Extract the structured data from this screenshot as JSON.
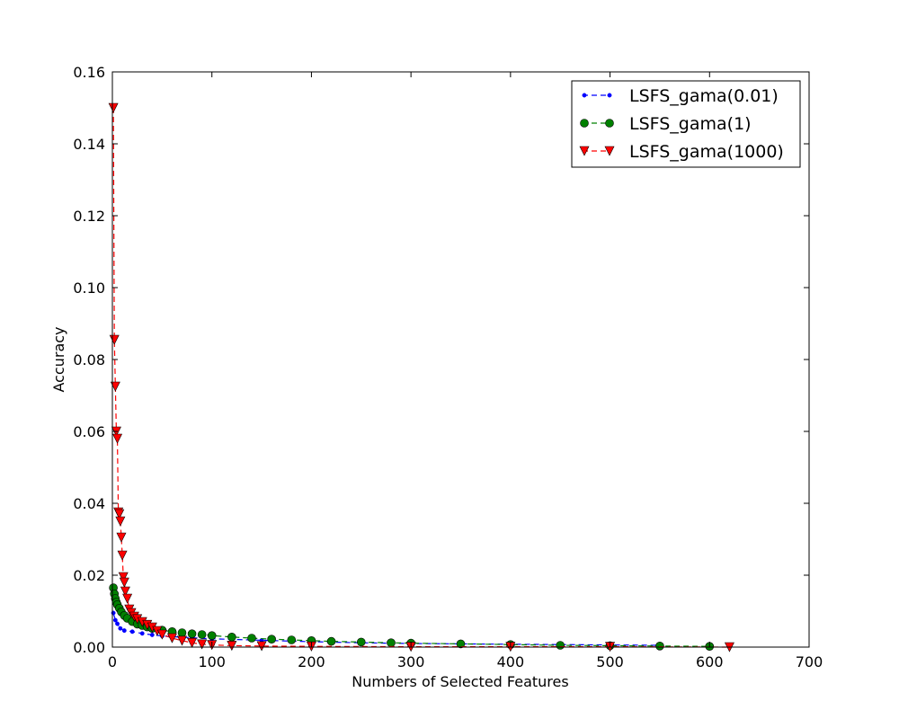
{
  "chart_data": {
    "type": "line",
    "title": "",
    "xlabel": "Numbers of Selected Features",
    "ylabel": "Accuracy",
    "xlim": [
      0,
      700
    ],
    "ylim": [
      0,
      0.16
    ],
    "x_ticks": [
      0,
      100,
      200,
      300,
      400,
      500,
      600,
      700
    ],
    "y_ticks": [
      0.0,
      0.02,
      0.04,
      0.06,
      0.08,
      0.1,
      0.12,
      0.14,
      0.16
    ],
    "x_tick_labels": [
      "0",
      "100",
      "200",
      "300",
      "400",
      "500",
      "600",
      "700"
    ],
    "y_tick_labels": [
      "0.00",
      "0.02",
      "0.04",
      "0.06",
      "0.08",
      "0.10",
      "0.12",
      "0.14",
      "0.16"
    ],
    "grid": false,
    "legend_position": "top-right",
    "series": [
      {
        "name": "LSFS_gama(0.01)",
        "color": "#0000ff",
        "marker": "point",
        "linestyle": "dashed",
        "points": [
          [
            1,
            0.0095
          ],
          [
            3,
            0.0075
          ],
          [
            5,
            0.0065
          ],
          [
            8,
            0.0052
          ],
          [
            12,
            0.0046
          ],
          [
            20,
            0.0043
          ],
          [
            30,
            0.0038
          ],
          [
            40,
            0.0034
          ],
          [
            50,
            0.0031
          ],
          [
            60,
            0.0029
          ],
          [
            80,
            0.0026
          ],
          [
            100,
            0.0023
          ],
          [
            150,
            0.0019
          ],
          [
            200,
            0.0015
          ],
          [
            250,
            0.0012
          ],
          [
            300,
            0.001
          ],
          [
            350,
            0.0009
          ],
          [
            400,
            0.0008
          ],
          [
            450,
            0.0007
          ],
          [
            500,
            0.0006
          ],
          [
            550,
            0.0005
          ]
        ]
      },
      {
        "name": "LSFS_gama(1)",
        "color": "#008000",
        "marker": "circle",
        "linestyle": "dashed",
        "points": [
          [
            1,
            0.0165
          ],
          [
            2,
            0.0148
          ],
          [
            3,
            0.0135
          ],
          [
            4,
            0.0125
          ],
          [
            5,
            0.0118
          ],
          [
            7,
            0.0108
          ],
          [
            9,
            0.0098
          ],
          [
            12,
            0.0088
          ],
          [
            15,
            0.008
          ],
          [
            20,
            0.0071
          ],
          [
            25,
            0.0064
          ],
          [
            30,
            0.006
          ],
          [
            35,
            0.0056
          ],
          [
            40,
            0.0052
          ],
          [
            50,
            0.0047
          ],
          [
            60,
            0.0043
          ],
          [
            70,
            0.004
          ],
          [
            80,
            0.0037
          ],
          [
            90,
            0.0035
          ],
          [
            100,
            0.0032
          ],
          [
            120,
            0.0028
          ],
          [
            140,
            0.0025
          ],
          [
            160,
            0.0022
          ],
          [
            180,
            0.002
          ],
          [
            200,
            0.0018
          ],
          [
            220,
            0.0016
          ],
          [
            250,
            0.0014
          ],
          [
            280,
            0.0012
          ],
          [
            300,
            0.0011
          ],
          [
            350,
            0.0009
          ],
          [
            400,
            0.0007
          ],
          [
            450,
            0.0005
          ],
          [
            500,
            0.0004
          ],
          [
            550,
            0.0003
          ],
          [
            600,
            0.0002
          ]
        ]
      },
      {
        "name": "LSFS_gama(1000)",
        "color": "#ff0000",
        "marker": "triangle-down",
        "linestyle": "dashed",
        "points": [
          [
            1,
            0.15
          ],
          [
            2,
            0.0855
          ],
          [
            3,
            0.0725
          ],
          [
            4,
            0.06
          ],
          [
            5,
            0.058
          ],
          [
            6,
            0.0375
          ],
          [
            7,
            0.037
          ],
          [
            8,
            0.035
          ],
          [
            9,
            0.0305
          ],
          [
            10,
            0.0255
          ],
          [
            11,
            0.0195
          ],
          [
            12,
            0.018
          ],
          [
            13,
            0.0155
          ],
          [
            15,
            0.0135
          ],
          [
            17,
            0.0105
          ],
          [
            19,
            0.0095
          ],
          [
            22,
            0.0085
          ],
          [
            25,
            0.0078
          ],
          [
            30,
            0.007
          ],
          [
            35,
            0.0062
          ],
          [
            40,
            0.0055
          ],
          [
            45,
            0.0045
          ],
          [
            50,
            0.0035
          ],
          [
            60,
            0.0025
          ],
          [
            70,
            0.0018
          ],
          [
            80,
            0.0012
          ],
          [
            90,
            0.0008
          ],
          [
            100,
            0.0006
          ],
          [
            120,
            0.0004
          ],
          [
            150,
            0.0003
          ],
          [
            200,
            0.0002
          ],
          [
            300,
            0.0001
          ],
          [
            400,
            0.0001
          ],
          [
            500,
            0.0001
          ],
          [
            620,
            0.0
          ]
        ]
      }
    ]
  }
}
